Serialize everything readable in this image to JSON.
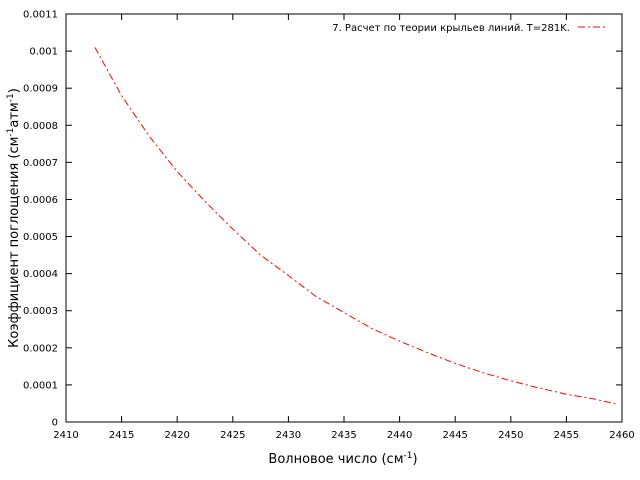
{
  "chart_data": {
    "type": "line",
    "title": "",
    "xlabel_main": "Волновое число (см",
    "xlabel_sup": "-1",
    "xlabel_tail": ")",
    "ylabel_main": "Коэффициент поглощения (см",
    "ylabel_sup1": "-1",
    "ylabel_mid": "атм",
    "ylabel_sup2": "-1",
    "ylabel_tail": ")",
    "xlim": [
      2410,
      2460
    ],
    "ylim": [
      0,
      0.0011
    ],
    "xticks": [
      "2410",
      "2415",
      "2420",
      "2425",
      "2430",
      "2435",
      "2440",
      "2445",
      "2450",
      "2455",
      "2460"
    ],
    "yticks": [
      "0",
      "0.0001",
      "0.0002",
      "0.0003",
      "0.0004",
      "0.0005",
      "0.0006",
      "0.0007",
      "0.0008",
      "0.0009",
      "0.001",
      "0.0011"
    ],
    "legend_position": "top-right",
    "grid": false,
    "series": [
      {
        "name": "7. Расчет по теории крыльев линий. T=281K.",
        "color": "#ff0000",
        "line_style": "dash-dot",
        "x": [
          2412.6,
          2415.0,
          2417.5,
          2420.0,
          2422.5,
          2425.0,
          2427.5,
          2430.0,
          2432.5,
          2435.0,
          2437.5,
          2440.0,
          2442.5,
          2445.0,
          2447.5,
          2450.0,
          2452.5,
          2455.0,
          2457.5,
          2459.4
        ],
        "y": [
          0.00101,
          0.00088,
          0.00077,
          0.000675,
          0.000595,
          0.00052,
          0.00045,
          0.000395,
          0.000338,
          0.000295,
          0.000252,
          0.000218,
          0.000187,
          0.000158,
          0.000133,
          0.000111,
          9.2e-05,
          7.5e-05,
          6.2e-05,
          4.9e-05
        ]
      }
    ]
  }
}
